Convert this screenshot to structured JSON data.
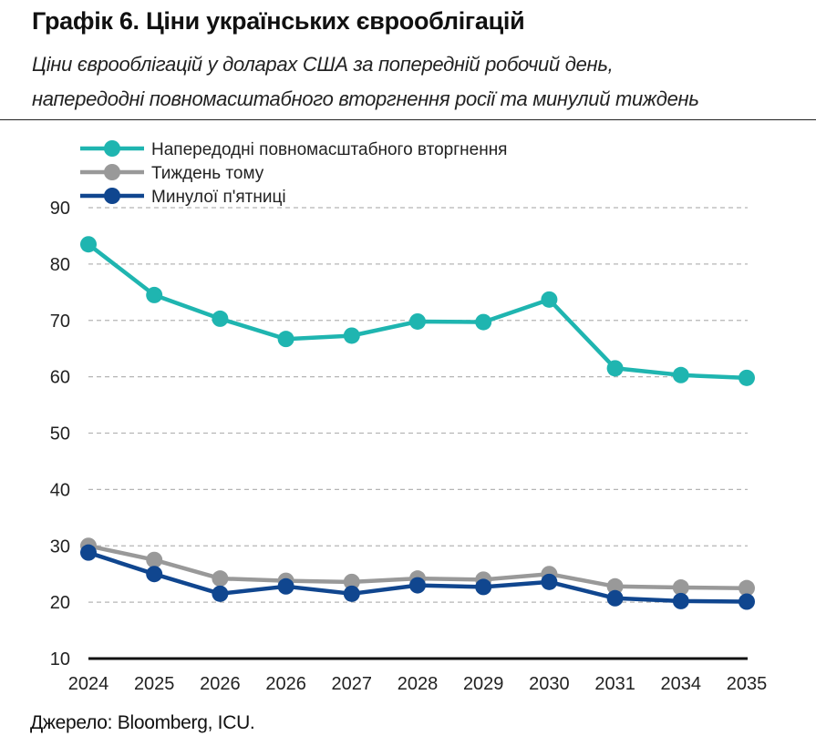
{
  "header": {
    "title": "Графік 6. Ціни українських єврооблігацій",
    "subtitle_line1": "Ціни єврооблігацій у доларах США за попередній робочий день,",
    "subtitle_line2": "напередодні повномасштабного вторгнення росії та минулий тиждень"
  },
  "footer": {
    "source": "Джерело: Bloomberg, ICU."
  },
  "chart_data": {
    "type": "line",
    "title": "Графік 6. Ціни українських єврооблігацій",
    "xlabel": "",
    "ylabel": "",
    "categories": [
      "2024",
      "2025",
      "2026",
      "2026",
      "2027",
      "2028",
      "2029",
      "2030",
      "2031",
      "2034",
      "2035"
    ],
    "ylim": [
      10,
      90
    ],
    "yticks": [
      10,
      20,
      30,
      40,
      50,
      60,
      70,
      80,
      90
    ],
    "grid": true,
    "legend_position": "top-left",
    "series": [
      {
        "name": "Напередодні повномасштабного вторгнення",
        "color": "#1fb5b0",
        "values": [
          83.5,
          74.5,
          70.3,
          66.7,
          67.3,
          69.8,
          69.7,
          73.7,
          61.5,
          60.3,
          59.8
        ]
      },
      {
        "name": "Тиждень тому",
        "color": "#999999",
        "values": [
          30.0,
          27.5,
          24.2,
          23.8,
          23.6,
          24.2,
          24.0,
          25.0,
          22.8,
          22.6,
          22.5
        ]
      },
      {
        "name": "Минулої п'ятниці",
        "color": "#10468f",
        "values": [
          28.8,
          25.0,
          21.5,
          22.8,
          21.5,
          23.0,
          22.7,
          23.6,
          20.7,
          20.2,
          20.1
        ]
      }
    ]
  }
}
